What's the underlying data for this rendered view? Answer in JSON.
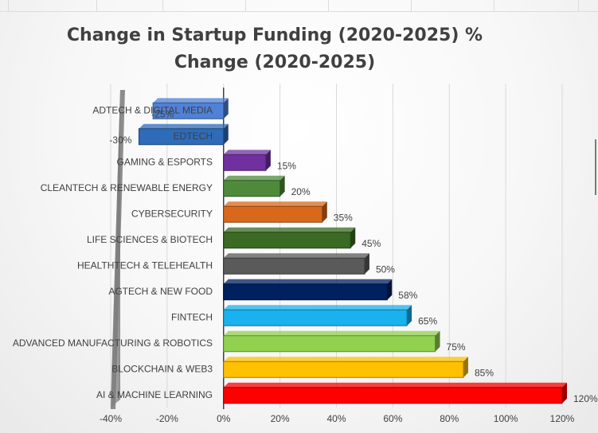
{
  "chart_data": {
    "type": "bar",
    "orientation": "horizontal",
    "title_lines": [
      "Change in Startup Funding (2020-2025) %",
      "Change (2020-2025)"
    ],
    "categories": [
      "ADTECH & DIGITAL MEDIA",
      "EDTECH",
      "GAMING & ESPORTS",
      "CLEANTECH & RENEWABLE ENERGY",
      "CYBERSECURITY",
      "LIFE SCIENCES & BIOTECH",
      "HEALTHTECH & TELEHEALTH",
      "AGTECH & NEW FOOD",
      "FINTECH",
      "ADVANCED MANUFACTURING & ROBOTICS",
      "BLOCKCHAIN & WEB3",
      "AI & MACHINE LEARNING"
    ],
    "values": [
      -25,
      -30,
      15,
      20,
      35,
      45,
      50,
      58,
      65,
      75,
      85,
      120
    ],
    "data_labels": [
      "-25%",
      "-30%",
      "15%",
      "20%",
      "35%",
      "45%",
      "50%",
      "58%",
      "65%",
      "75%",
      "85%",
      "120%"
    ],
    "colors": [
      "#4f81d6",
      "#2e6bb8",
      "#7030a0",
      "#4e8a3a",
      "#d8681c",
      "#3a6a23",
      "#5a5a5a",
      "#002060",
      "#19b1ee",
      "#92d050",
      "#ffc000",
      "#ff0000"
    ],
    "x_ticks": [
      "-40%",
      "-20%",
      "0%",
      "20%",
      "40%",
      "60%",
      "80%",
      "100%",
      "120%"
    ],
    "xlim": [
      -40,
      120
    ],
    "grid": true,
    "legend": "none"
  }
}
